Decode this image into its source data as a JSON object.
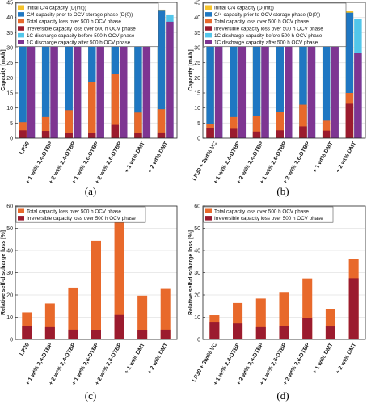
{
  "chart_data": [
    {
      "type": "bar",
      "panel": "(a)",
      "ylabel": "Capacity [mAh]",
      "ylim": [
        0,
        45
      ],
      "yticks": [
        0,
        5,
        10,
        15,
        20,
        25,
        30,
        35,
        40,
        45
      ],
      "grid": true,
      "legend_placement": "top-left",
      "categories": [
        "LP30",
        "+ 1 wt% 2,4-DTBP",
        "+ 2 wt% 2,4-DTBP",
        "+ 1 wt% 2,6-DTBP",
        "+ 2 wt% 2,6-DTBP",
        "+ 1 wt% DMT",
        "+ 2 wt% DMT"
      ],
      "colors": {
        "initial_c4": "#f5c32b",
        "c4_prior": "#1f77c2",
        "total_loss": "#e8692b",
        "irreversible": "#9b1b2e",
        "c1_before": "#52c6ea",
        "c1_after": "#7e3592"
      },
      "series": [
        {
          "name": "Initial C/4 capacity (D(init))",
          "values": [
            43.6,
            43.2,
            40.2,
            42.6,
            40.6,
            43.3,
            42.6
          ]
        },
        {
          "name": "C/4 capacity prior to OCV storage phase (D(0))",
          "values": [
            43.3,
            43.0,
            39.8,
            42.4,
            40.2,
            43.1,
            42.5
          ]
        },
        {
          "name": "Total capacity loss over 500 h OCV phase",
          "values": [
            5.3,
            7.0,
            9.3,
            18.6,
            21.2,
            8.5,
            9.6
          ]
        },
        {
          "name": "Irreversible capacity loss over 500 h OCV phase",
          "values": [
            2.6,
            2.4,
            1.8,
            1.7,
            4.4,
            1.8,
            1.9
          ]
        },
        {
          "name": "1C discharge capacity before 500 h OCV phase",
          "values": [
            41.8,
            41.3,
            38.3,
            41.0,
            38.6,
            41.8,
            41.0
          ]
        },
        {
          "name": "1C discharge capacity after 500 h OCV phase",
          "values": [
            40.1,
            38.8,
            35.6,
            38.4,
            33.5,
            40.0,
            38.6
          ]
        }
      ]
    },
    {
      "type": "bar",
      "panel": "(b)",
      "ylabel": "Capacity [mAh]",
      "ylim": [
        0,
        45
      ],
      "yticks": [
        0,
        5,
        10,
        15,
        20,
        25,
        30,
        35,
        40,
        45
      ],
      "grid": true,
      "legend_placement": "top-left",
      "categories": [
        "LP30 + 3wt% VC",
        "+ 1 wt% 2,4-DTBP",
        "+ 2 wt% 2,4-DTBP",
        "+ 1 wt% 2,6-DTBP",
        "+ 2 wt% 2,6-DTBP",
        "+ 1 wt% DMT",
        "+ 2 wt% DMT"
      ],
      "series": [
        {
          "name": "Initial C/4 capacity (D(init))",
          "values": [
            43.6,
            42.5,
            40.3,
            42.2,
            40.8,
            42.8,
            42.2
          ]
        },
        {
          "name": "C/4 capacity prior to OCV storage phase (D(0))",
          "values": [
            43.5,
            42.4,
            40.1,
            42.0,
            40.5,
            42.7,
            41.6
          ]
        },
        {
          "name": "Total capacity loss over 500 h OCV phase",
          "values": [
            4.8,
            7.0,
            7.4,
            8.8,
            11.1,
            5.8,
            15.0
          ]
        },
        {
          "name": "Irreversible capacity loss over 500 h OCV phase",
          "values": [
            3.3,
            3.1,
            2.2,
            2.6,
            3.9,
            2.5,
            11.4
          ]
        },
        {
          "name": "1C discharge capacity before 500 h OCV phase",
          "values": [
            41.5,
            40.0,
            38.3,
            40.3,
            39.0,
            41.4,
            39.5
          ]
        },
        {
          "name": "1C discharge capacity after 500 h OCV phase",
          "values": [
            39.0,
            37.3,
            36.2,
            37.3,
            35.5,
            39.0,
            28.3
          ]
        }
      ]
    },
    {
      "type": "bar",
      "panel": "(c)",
      "ylabel": "Relative self-discharge loss [%]",
      "ylim": [
        0,
        60
      ],
      "yticks": [
        0,
        10,
        20,
        30,
        40,
        50,
        60
      ],
      "grid": true,
      "legend_placement": "top-left",
      "categories": [
        "LP30",
        "+ 1 wt% 2,4-DTBP",
        "+ 2 wt% 2,4-DTBP",
        "+ 1 wt% 2,6-DTBP",
        "+ 2 wt% 2,6-DTBP",
        "+ 1 wt% DMT",
        "+ 2 wt% DMT"
      ],
      "series": [
        {
          "name": "Total capacity loss over 500 h OCV phase",
          "values": [
            12.2,
            16.2,
            23.3,
            44.4,
            52.8,
            19.7,
            22.7
          ]
        },
        {
          "name": "Irreversible capacity loss over 500 h OCV phase",
          "values": [
            6.0,
            5.5,
            4.4,
            4.0,
            11.0,
            4.2,
            4.4
          ]
        }
      ]
    },
    {
      "type": "bar",
      "panel": "(d)",
      "ylabel": "Relative self-discharge loss [%]",
      "ylim": [
        0,
        60
      ],
      "yticks": [
        0,
        10,
        20,
        30,
        40,
        50,
        60
      ],
      "grid": true,
      "legend_placement": "top-left",
      "categories": [
        "LP30 + 3wt% VC",
        "+ 1 wt% 2,4-DTBP",
        "+ 2 wt% 2,4-DTBP",
        "+ 1 wt% 2,6-DTBP",
        "+ 2 wt% 2,6-DTBP",
        "+ 1 wt% DMT",
        "+ 2 wt% DMT"
      ],
      "series": [
        {
          "name": "Total capacity loss over 500 h OCV phase",
          "values": [
            10.9,
            16.4,
            18.4,
            21.0,
            27.4,
            13.7,
            36.2
          ]
        },
        {
          "name": "Irreversible capacity loss over 500 h OCV phase",
          "values": [
            7.6,
            7.2,
            5.5,
            6.1,
            9.5,
            5.8,
            27.5
          ]
        }
      ]
    }
  ]
}
